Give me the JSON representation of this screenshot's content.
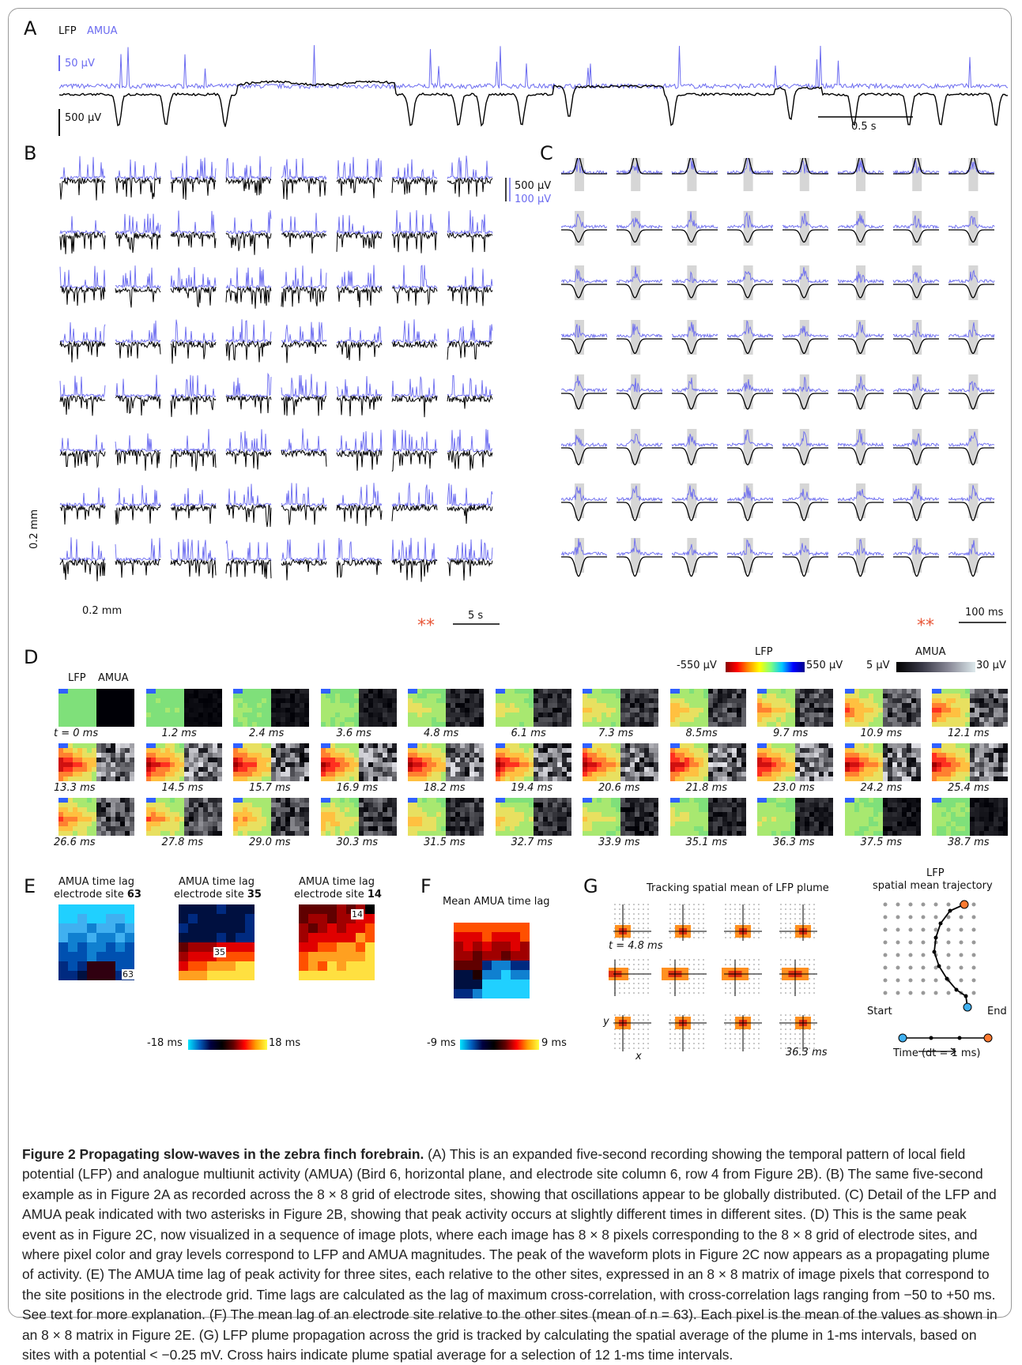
{
  "panel_a": {
    "label": "A",
    "legend_lfp": "LFP",
    "legend_amua": "AMUA",
    "amua_scale": "50 µV",
    "lfp_scale": "500 µV",
    "time_scale": "0.5 s"
  },
  "panel_b": {
    "label": "B",
    "scale_lfp": "500 µV",
    "scale_amua": "100 µV",
    "spatial_v": "0.2 mm",
    "spatial_h": "0.2 mm",
    "time_scale": "5 s",
    "marker": "**"
  },
  "panel_c": {
    "label": "C",
    "time_scale": "100 ms",
    "marker": "**"
  },
  "panel_d": {
    "label": "D",
    "col_lfp": "LFP",
    "col_amua": "AMUA",
    "lfp_cbar_title": "LFP",
    "lfp_cbar_min": "-550 µV",
    "lfp_cbar_max": "550 µV",
    "amua_cbar_title": "AMUA",
    "amua_cbar_min": "5 µV",
    "amua_cbar_max": "30 µV",
    "times": [
      "t = 0 ms",
      "1.2 ms",
      "2.4 ms",
      "3.6 ms",
      "4.8 ms",
      "6.1 ms",
      "7.3 ms",
      "8.5ms",
      "9.7 ms",
      "10.9 ms",
      "12.1 ms",
      "13.3 ms",
      "14.5 ms",
      "15.7 ms",
      "16.9 ms",
      "18.2 ms",
      "19.4 ms",
      "20.6 ms",
      "21.8 ms",
      "23.0 ms",
      "24.2 ms",
      "25.4 ms",
      "26.6 ms",
      "27.8 ms",
      "29.0 ms",
      "30.3 ms",
      "31.5 ms",
      "32.7 ms",
      "33.9 ms",
      "35.1 ms",
      "36.3 ms",
      "37.5 ms",
      "38.7 ms"
    ]
  },
  "panel_e": {
    "label": "E",
    "maps": [
      {
        "title": "AMUA time lag",
        "subtitle": "electrode site",
        "site": "63"
      },
      {
        "title": "AMUA time lag",
        "subtitle": "electrode site",
        "site": "35"
      },
      {
        "title": "AMUA time lag",
        "subtitle": "electrode site",
        "site": "14"
      }
    ],
    "cbar_min": "-18 ms",
    "cbar_max": "18 ms"
  },
  "panel_f": {
    "label": "F",
    "title": "Mean AMUA time lag",
    "cbar_min": "-9 ms",
    "cbar_max": "9 ms"
  },
  "panel_g": {
    "label": "G",
    "title": "Tracking spatial mean of LFP plume",
    "first_time": "t = 4.8 ms",
    "last_time": "36.3 ms",
    "axis_y": "y",
    "axis_x": "x",
    "traj_title_1": "LFP",
    "traj_title_2": "spatial mean trajectory",
    "start_label": "Start",
    "end_label": "End",
    "time_label": "Time (dt = 1 ms)"
  },
  "caption": {
    "title": "Figure 2 Propagating slow-waves in the zebra finch forebrain.",
    "text": " (A) This is an expanded five-second recording showing the temporal pattern of local field potential (LFP) and analogue multiunit activity (AMUA) (Bird 6, horizontal plane, and electrode site column 6, row 4 from Figure 2B). (B) The same five-second example as in Figure 2A as recorded across the 8 × 8 grid of electrode sites, showing that oscillations appear to be globally distributed. (C) Detail of the LFP and AMUA peak indicated with two asterisks in Figure 2B, showing that peak activity occurs at slightly different times in different sites. (D) This is the same peak event as in Figure 2C, now visualized in a sequence of image plots, where each image has 8 × 8 pixels corresponding to the 8 × 8 grid of electrode sites, and where pixel color and gray levels correspond to LFP and AMUA magnitudes. The peak of the waveform plots in Figure 2C now appears as a propagating plume of activity. (E) The AMUA time lag of peak activity for three sites, each relative to the other sites, expressed in an 8 × 8 matrix of image pixels that correspond to the site positions in the electrode grid. Time lags are calculated as the lag of maximum cross-correlation, with cross-correlation lags ranging from −50 to +50 ms. See text for more explanation. (F) The mean lag of an electrode site relative to the other sites (mean of n = 63). Each pixel is the mean of the values as shown in an 8 × 8 matrix in Figure 2E. (G) LFP plume propagation across the grid is tracked by calculating the spatial average of the plume in 1-ms intervals, based on sites with a potential < −0.25 mV. Cross hairs indicate plume spatial average for a selection of 12 1-ms time intervals."
  },
  "colors": {
    "amua": "#6b6bf0",
    "lfp": "#000000",
    "marker": "#e8583a"
  }
}
